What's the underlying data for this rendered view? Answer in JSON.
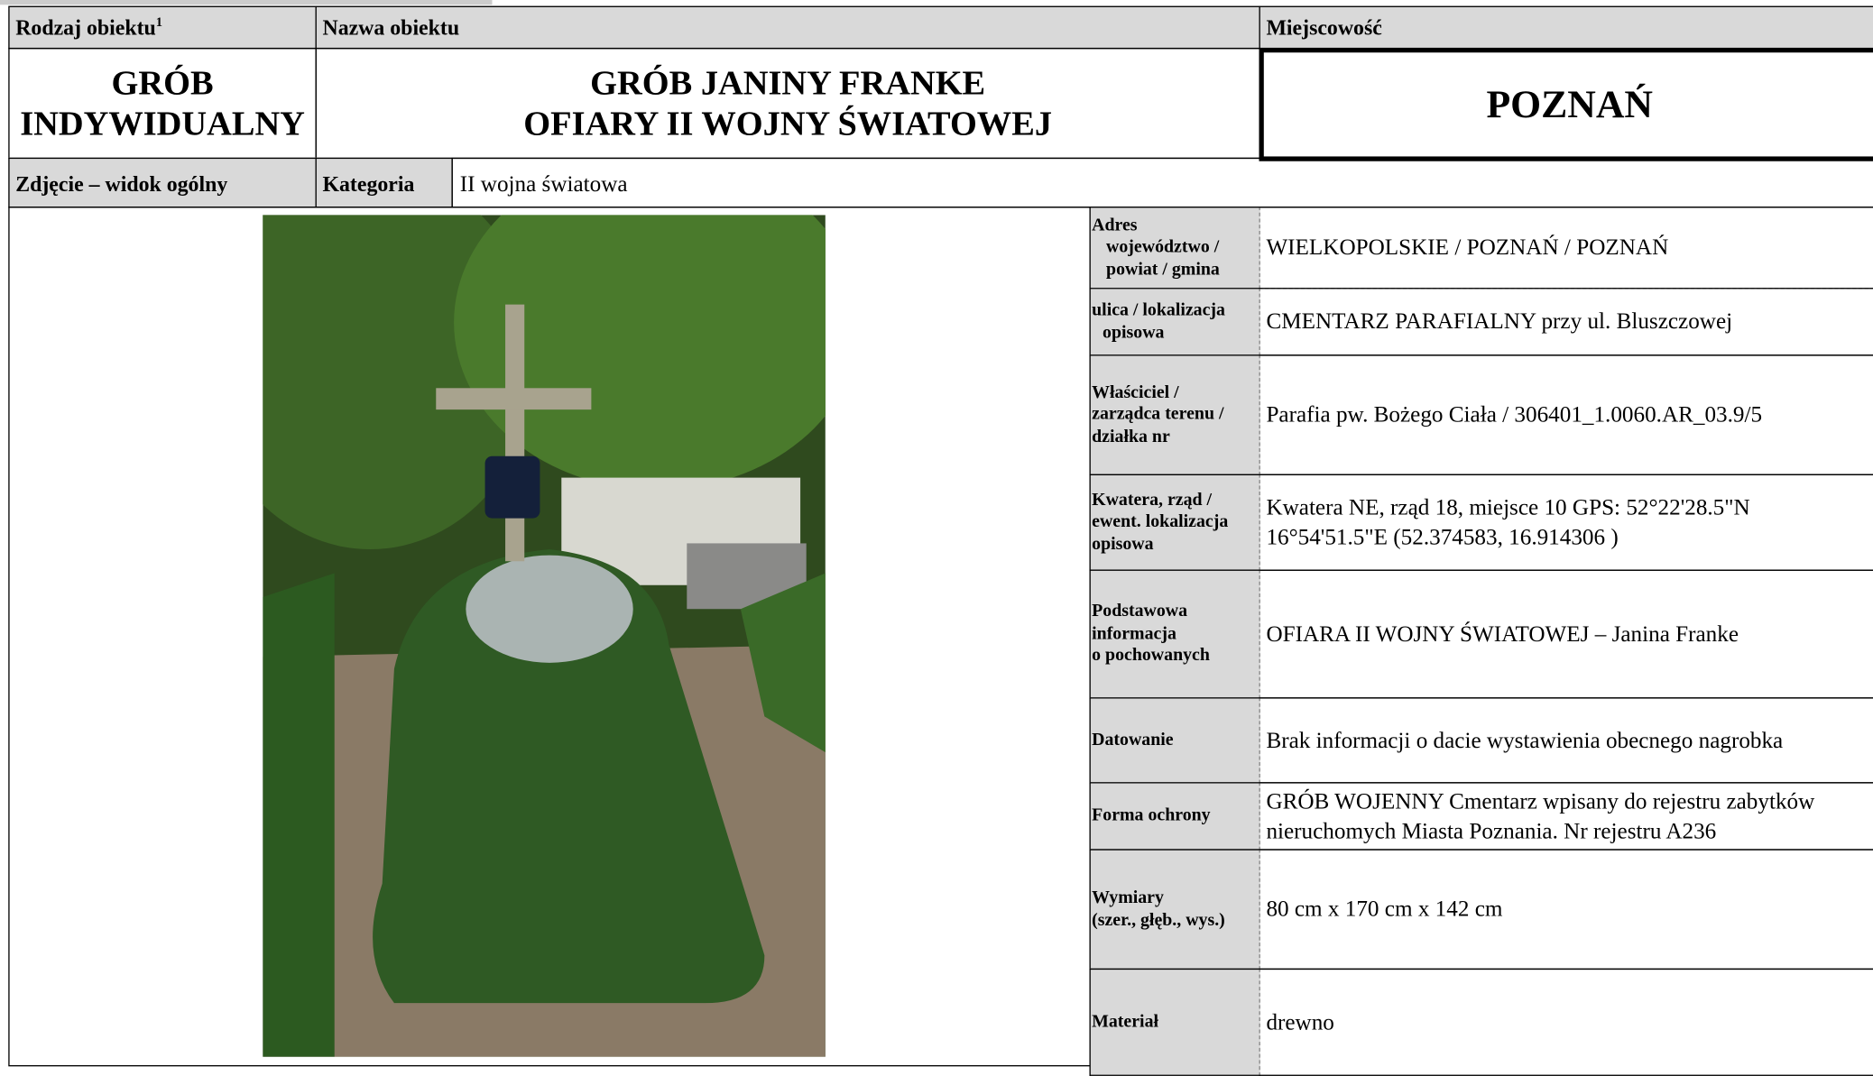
{
  "header": {
    "type_label": "Rodzaj obiektu",
    "type_label_note": "1",
    "name_label": "Nazwa obiektu",
    "place_label": "Miejscowość",
    "type_value": [
      "GRÓB",
      "INDYWIDUALNY"
    ],
    "name_value": [
      "GRÓB JANINY FRANKE",
      "OFIARY II WOJNY ŚWIATOWEJ"
    ],
    "place_value": "POZNAŃ",
    "photo_label": "Zdjęcie – widok ogólny",
    "category_label": "Kategoria",
    "category_value": "II wojna światowa"
  },
  "details": {
    "rows": [
      {
        "label": [
          "Adres",
          "województwo /",
          "powiat / gmina"
        ],
        "value": [
          "WIELKOPOLSKIE / POZNAŃ  / POZNAŃ"
        ]
      },
      {
        "label": [
          "ulica / lokalizacja",
          "opisowa"
        ],
        "value": [
          "CMENTARZ PARAFIALNY przy ul. Bluszczowej"
        ]
      },
      {
        "label": [
          "Właściciel /",
          "zarządca terenu /",
          "działka nr"
        ],
        "value": [
          "Parafia pw. Bożego Ciała / 306401_1.0060.AR_03.9/5"
        ]
      },
      {
        "label": [
          "Kwatera, rząd /",
          "ewent. lokalizacja",
          "opisowa"
        ],
        "value": [
          "Kwatera NE, rząd 18, miejsce 10 GPS: 52°22'28.5\"N",
          "16°54'51.5\"E (52.374583, 16.914306 )"
        ]
      },
      {
        "label": [
          "Podstawowa",
          "informacja",
          "o pochowanych"
        ],
        "value": [
          "OFIARA II WOJNY ŚWIATOWEJ – Janina Franke"
        ]
      },
      {
        "label": [
          "Datowanie"
        ],
        "value": [
          "Brak informacji o dacie wystawienia obecnego nagrobka"
        ]
      },
      {
        "label": [
          "Forma ochrony"
        ],
        "value": [
          "GRÓB WOJENNY Cmentarz wpisany do rejestru zabytków",
          "nieruchomych Miasta Poznania. Nr rejestru A236"
        ]
      },
      {
        "label": [
          "Wymiary",
          "(szer., głęb., wys.)"
        ],
        "value": [
          "80 cm x 170 cm x 142 cm"
        ]
      },
      {
        "label": [
          "Materiał"
        ],
        "value": [
          "drewno"
        ]
      }
    ]
  }
}
